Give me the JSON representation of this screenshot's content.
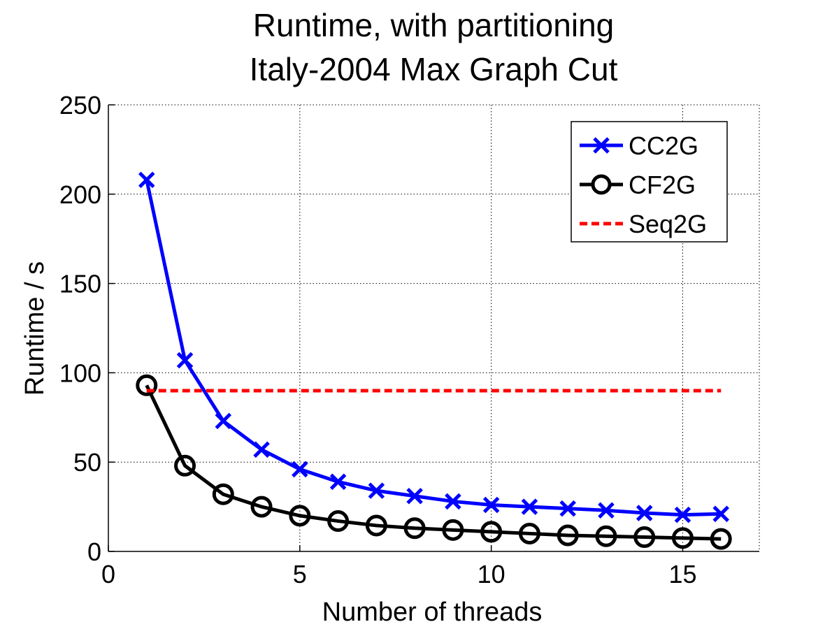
{
  "chart_data": {
    "type": "line",
    "title": [
      "Runtime, with partitioning",
      "Italy-2004 Max Graph Cut"
    ],
    "xlabel": "Number of threads",
    "ylabel": "Runtime / s",
    "xlim": [
      0,
      17
    ],
    "ylim": [
      0,
      250
    ],
    "xticks": [
      0,
      5,
      10,
      15
    ],
    "yticks": [
      0,
      50,
      100,
      150,
      200,
      250
    ],
    "grid": true,
    "legend_position": "top-right",
    "series": [
      {
        "name": "CC2G",
        "color": "#0000ff",
        "marker": "x",
        "line_style": "solid",
        "x": [
          1,
          2,
          3,
          4,
          5,
          6,
          7,
          8,
          9,
          10,
          11,
          12,
          13,
          14,
          15,
          16
        ],
        "y": [
          208,
          107,
          73,
          57,
          46,
          39,
          34,
          31,
          28,
          26,
          25,
          24,
          23,
          21.5,
          20.5,
          21
        ]
      },
      {
        "name": "CF2G",
        "color": "#000000",
        "marker": "o",
        "line_style": "solid",
        "x": [
          1,
          2,
          3,
          4,
          5,
          6,
          7,
          8,
          9,
          10,
          11,
          12,
          13,
          14,
          15,
          16
        ],
        "y": [
          93,
          48,
          32,
          25,
          20,
          17,
          14.5,
          13,
          12,
          11,
          10,
          9,
          8.5,
          8,
          7.5,
          7
        ]
      },
      {
        "name": "Seq2G",
        "color": "#ff0000",
        "marker": "none",
        "line_style": "dashed",
        "x": [
          1,
          16
        ],
        "y": [
          90,
          90
        ]
      }
    ]
  }
}
